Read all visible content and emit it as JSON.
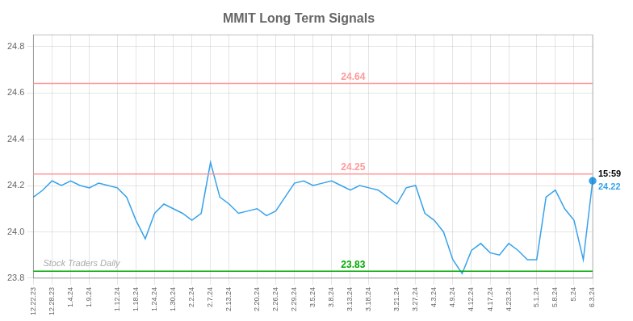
{
  "chart_data": {
    "type": "line",
    "title": "MMIT Long Term Signals",
    "categories": [
      "12.22.23",
      null,
      "12.28.23",
      null,
      "1.4.24",
      null,
      "1.9.24",
      null,
      null,
      "1.12.24",
      null,
      "1.18.24",
      null,
      "1.24.24",
      null,
      "1.30.24",
      null,
      "2.2.24",
      null,
      "2.7.24",
      null,
      "2.13.24",
      null,
      null,
      "2.20.24",
      null,
      "2.26.24",
      null,
      "2.29.24",
      null,
      "3.5.24",
      null,
      "3.8.24",
      null,
      "3.13.24",
      null,
      "3.18.24",
      null,
      null,
      "3.21.24",
      null,
      "3.27.24",
      null,
      "4.3.24",
      null,
      "4.9.24",
      null,
      "4.12.24",
      null,
      "4.17.24",
      null,
      "4.23.24",
      null,
      null,
      "5.1.24",
      null,
      "5.8.24",
      null,
      "5.24",
      null,
      "6.3.24"
    ],
    "values": [
      24.15,
      24.18,
      24.22,
      24.2,
      24.22,
      24.2,
      24.19,
      24.21,
      24.2,
      24.19,
      24.15,
      24.05,
      23.97,
      24.08,
      24.12,
      24.1,
      24.08,
      24.05,
      24.08,
      24.3,
      24.15,
      24.12,
      24.08,
      24.09,
      24.1,
      24.07,
      24.09,
      24.15,
      24.21,
      24.22,
      24.2,
      24.21,
      24.22,
      24.2,
      24.18,
      24.2,
      24.19,
      24.18,
      24.15,
      24.12,
      24.19,
      24.2,
      24.08,
      24.05,
      24.0,
      23.88,
      23.82,
      23.92,
      23.95,
      23.91,
      23.9,
      23.95,
      23.92,
      23.88,
      23.88,
      24.15,
      24.18,
      24.1,
      24.05,
      23.88,
      24.22
    ],
    "ylim": [
      23.8,
      24.85
    ],
    "yticks": [
      23.8,
      {
        "value": 24.0,
        "label": "24.0"
      },
      24.2,
      24.4,
      24.6,
      24.8
    ],
    "grid": true,
    "hlines": [
      {
        "value": 24.64,
        "label": "24.64",
        "color": "#ff9999"
      },
      {
        "value": 24.25,
        "label": "24.25",
        "color": "#ff9999"
      },
      {
        "value": 23.83,
        "label": "23.83",
        "color": "#00aa00"
      }
    ],
    "last_point": {
      "value": 24.22,
      "label": "24.22",
      "text": "15:59"
    },
    "annotations": [
      "Stock Traders Daily"
    ]
  }
}
